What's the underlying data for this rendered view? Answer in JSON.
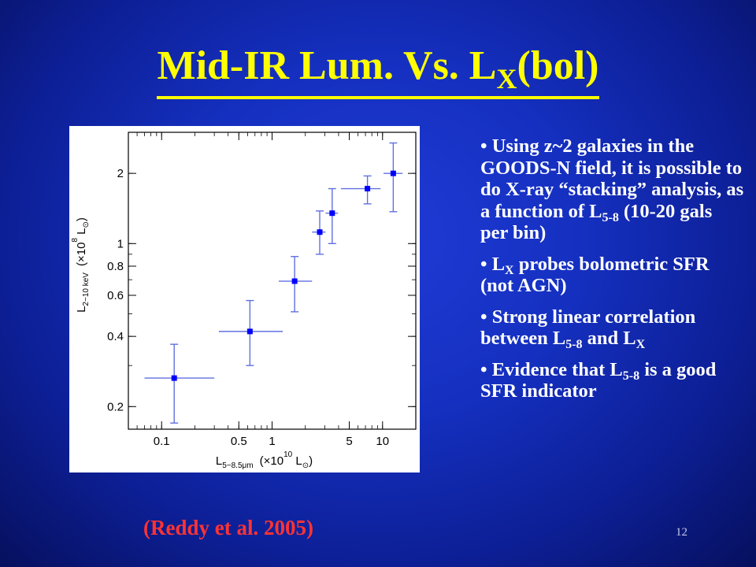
{
  "slide": {
    "title_main": "Mid-IR Lum. Vs. L",
    "title_sub": "X",
    "title_tail": "(bol)",
    "caption": "(Reddy et al. 2005)",
    "page_number": "12",
    "bullets": [
      {
        "parts": [
          {
            "t": "• Using z~2 galaxies in the GOODS-N field, it is possible to do X-ray “stacking” analysis, as a function of L"
          },
          {
            "sub": "5-8"
          },
          {
            "t": " (10-20 gals per bin)"
          }
        ]
      },
      {
        "parts": [
          {
            "t": "• L"
          },
          {
            "sub": "X"
          },
          {
            "t": " probes bolometric SFR (not AGN)"
          }
        ]
      },
      {
        "parts": [
          {
            "t": "• Strong linear correlation between L"
          },
          {
            "sub": "5-8"
          },
          {
            "t": " and L"
          },
          {
            "sub": "X"
          }
        ]
      },
      {
        "parts": [
          {
            "t": "• Evidence that L"
          },
          {
            "sub": "5-8"
          },
          {
            "t": " is a good SFR indicator"
          }
        ]
      }
    ]
  },
  "colors": {
    "title": "#ffff00",
    "caption": "#ff3333",
    "text": "#ffffff",
    "marker": "#0000ff",
    "errorbar": "#6070e0"
  },
  "chart_data": {
    "type": "scatter",
    "xscale": "log",
    "yscale": "log",
    "xlim": [
      0.05,
      20
    ],
    "ylim": [
      0.16,
      3.0
    ],
    "xlabel_main": "L",
    "xlabel_sub": "5−8.5μm",
    "xlabel_unit": "(×10",
    "xlabel_exp": "10",
    "xlabel_tail": " L",
    "xlabel_sun": "⊙",
    "xlabel_close": ")",
    "ylabel_main": "L",
    "ylabel_sub": "2−10 keV",
    "ylabel_unit": "(×10",
    "ylabel_exp": "8",
    "ylabel_tail": " L",
    "ylabel_sun": "⊙",
    "ylabel_close": ")",
    "xticks": [
      {
        "v": 0.1,
        "label": "0.1"
      },
      {
        "v": 0.5,
        "label": "0.5"
      },
      {
        "v": 1,
        "label": "1"
      },
      {
        "v": 5,
        "label": "5"
      },
      {
        "v": 10,
        "label": "10"
      }
    ],
    "yticks": [
      {
        "v": 0.2,
        "label": "0.2"
      },
      {
        "v": 0.4,
        "label": "0.4"
      },
      {
        "v": 0.6,
        "label": "0.6"
      },
      {
        "v": 0.8,
        "label": "0.8"
      },
      {
        "v": 1,
        "label": "1"
      },
      {
        "v": 2,
        "label": "2"
      }
    ],
    "points": [
      {
        "x": 0.13,
        "y": 0.265,
        "xlo": 0.07,
        "xhi": 0.3,
        "ylo": 0.17,
        "yhi": 0.37
      },
      {
        "x": 0.63,
        "y": 0.42,
        "xlo": 0.33,
        "xhi": 1.25,
        "ylo": 0.3,
        "yhi": 0.57
      },
      {
        "x": 1.6,
        "y": 0.69,
        "xlo": 1.15,
        "xhi": 2.3,
        "ylo": 0.51,
        "yhi": 0.88
      },
      {
        "x": 2.7,
        "y": 1.12,
        "xlo": 2.3,
        "xhi": 3.05,
        "ylo": 0.9,
        "yhi": 1.38
      },
      {
        "x": 3.5,
        "y": 1.35,
        "xlo": 3.05,
        "xhi": 3.95,
        "ylo": 1.0,
        "yhi": 1.72
      },
      {
        "x": 7.3,
        "y": 1.72,
        "xlo": 4.2,
        "xhi": 9.6,
        "ylo": 1.48,
        "yhi": 1.95
      },
      {
        "x": 12.5,
        "y": 2.0,
        "xlo": 10.2,
        "xhi": 15.2,
        "ylo": 1.37,
        "yhi": 2.7
      }
    ]
  }
}
